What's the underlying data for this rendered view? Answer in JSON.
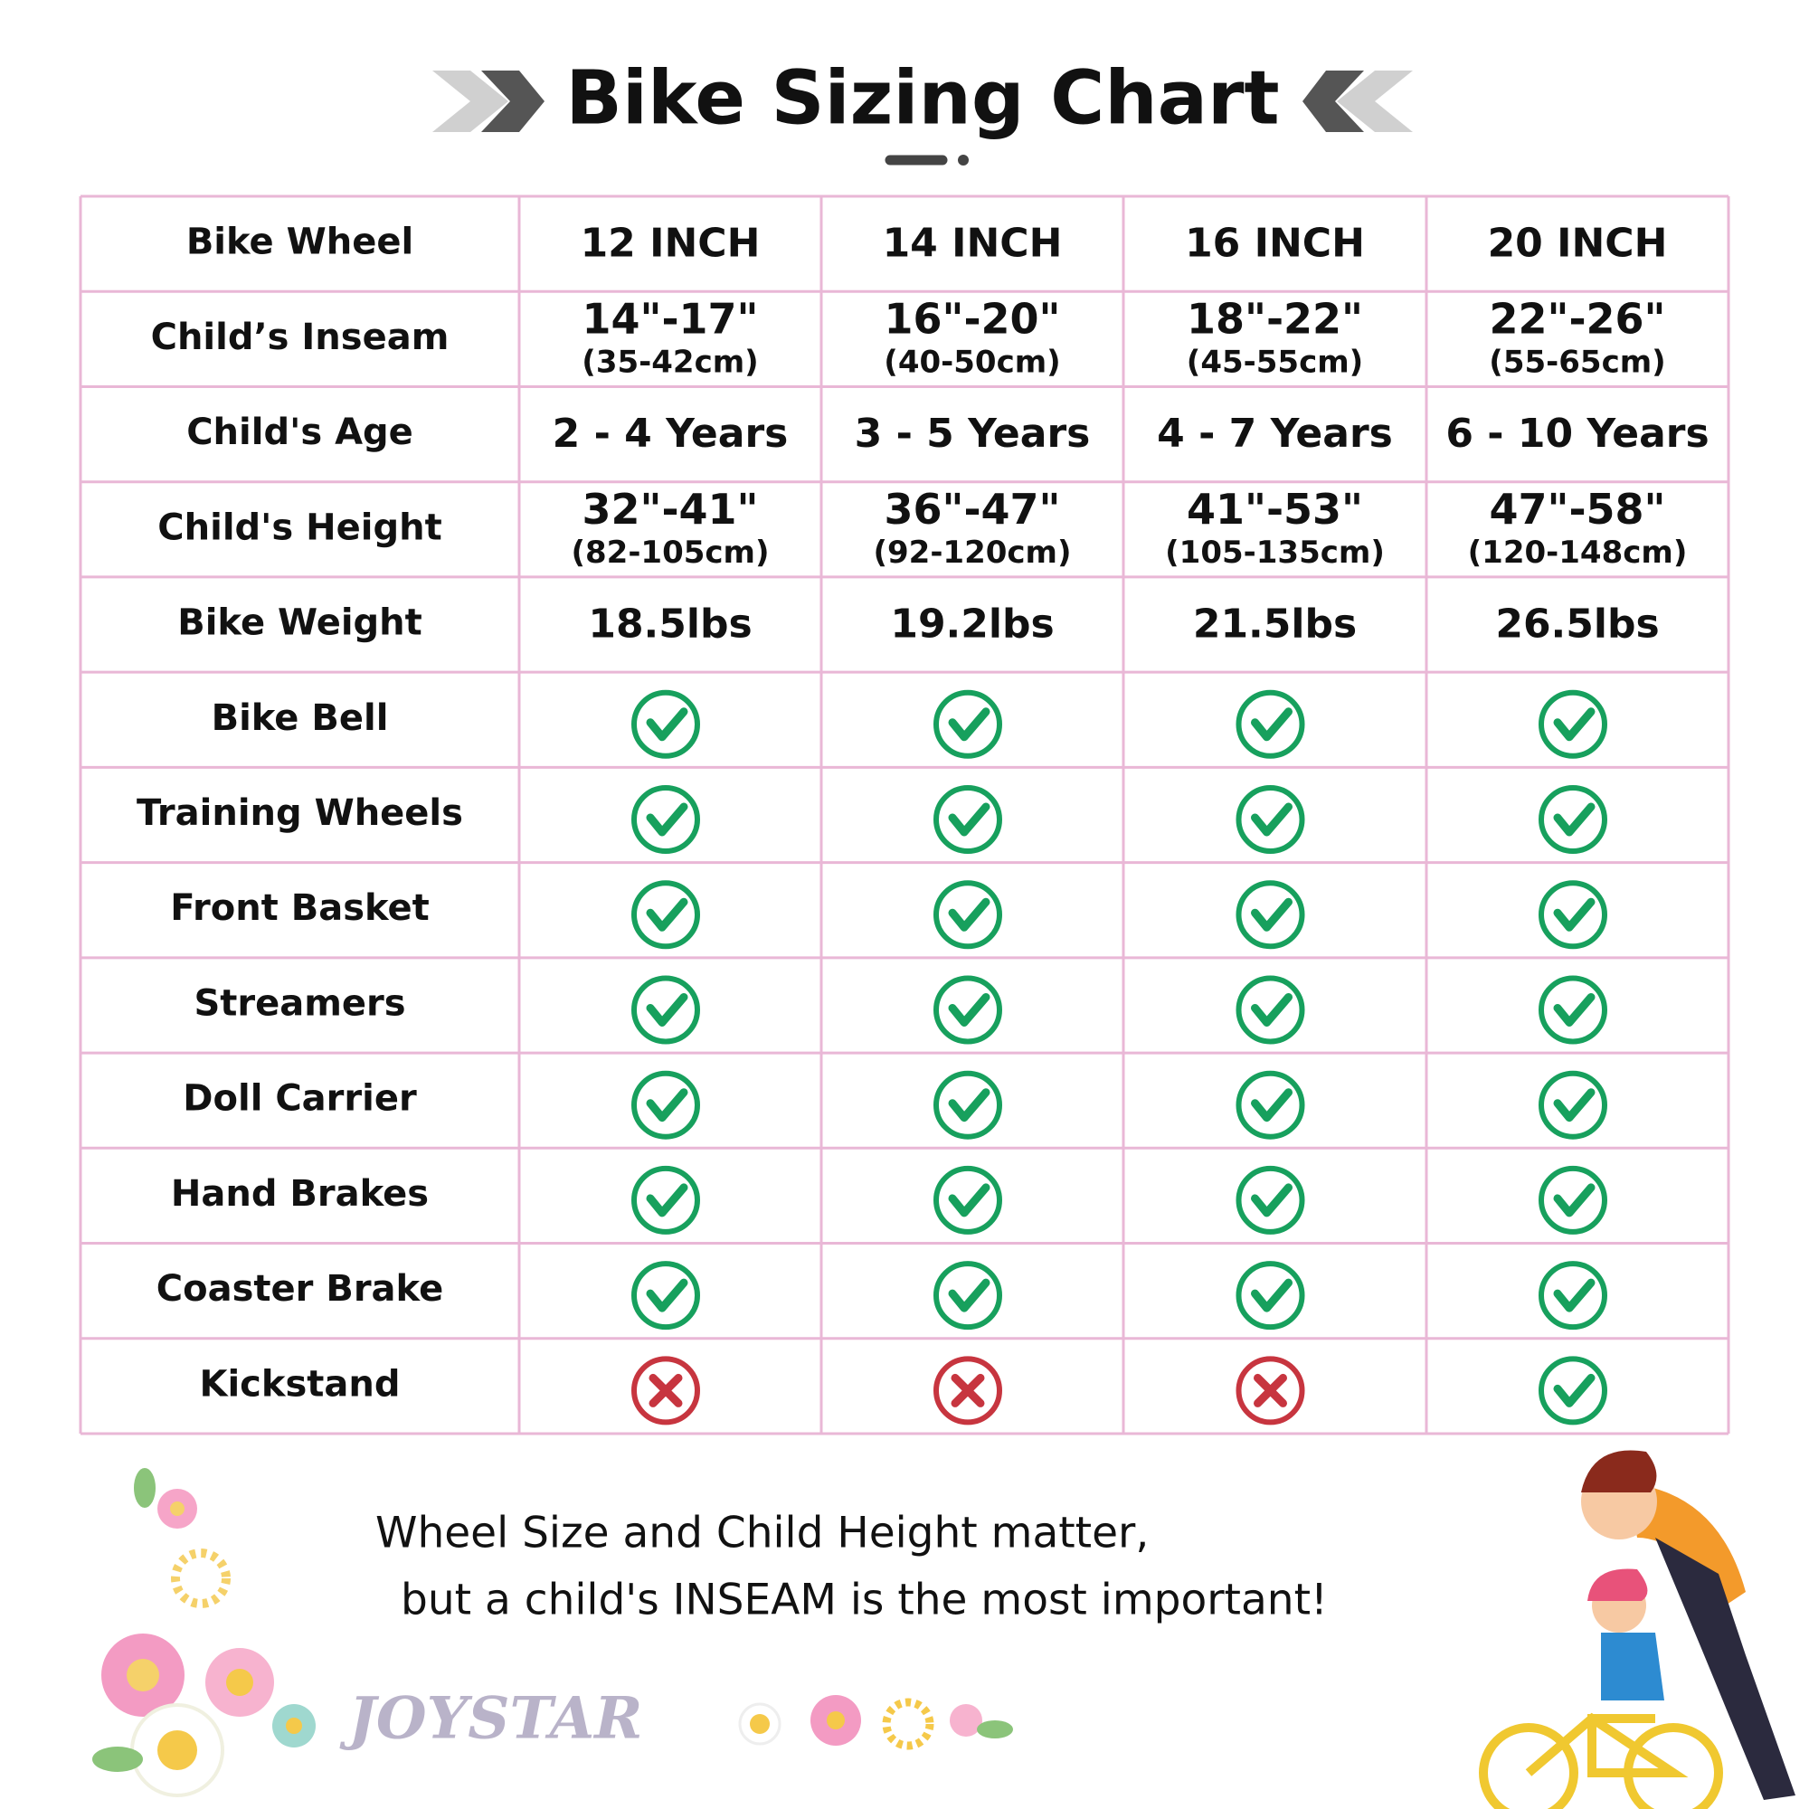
{
  "header": {
    "title": "Bike Sizing Chart"
  },
  "table": {
    "rows": [
      {
        "label": "Bike Wheel",
        "cells": [
          "12 INCH",
          "14 INCH",
          "16 INCH",
          "20 INCH"
        ]
      },
      {
        "label": "Child’s Inseam",
        "cells": [
          {
            "main": "14\"-17\"",
            "sub": "(35-42cm)"
          },
          {
            "main": "16\"-20\"",
            "sub": "(40-50cm)"
          },
          {
            "main": "18\"-22\"",
            "sub": "(45-55cm)"
          },
          {
            "main": "22\"-26\"",
            "sub": "(55-65cm)"
          }
        ]
      },
      {
        "label": "Child's Age",
        "cells": [
          "2 - 4 Years",
          "3 - 5 Years",
          "4 - 7 Years",
          "6 - 10 Years"
        ]
      },
      {
        "label": "Child's Height",
        "cells": [
          {
            "main": "32\"-41\"",
            "sub": "(82-105cm)"
          },
          {
            "main": "36\"-47\"",
            "sub": "(92-120cm)"
          },
          {
            "main": "41\"-53\"",
            "sub": "(105-135cm)"
          },
          {
            "main": "47\"-58\"",
            "sub": "(120-148cm)"
          }
        ]
      },
      {
        "label": "Bike Weight",
        "cells": [
          "18.5lbs",
          "19.2lbs",
          "21.5lbs",
          "26.5lbs"
        ]
      },
      {
        "label": "Bike Bell",
        "cells": [
          true,
          true,
          true,
          true
        ]
      },
      {
        "label": "Training Wheels",
        "cells": [
          true,
          true,
          true,
          true
        ]
      },
      {
        "label": "Front Basket",
        "cells": [
          true,
          true,
          true,
          true
        ]
      },
      {
        "label": "Streamers",
        "cells": [
          true,
          true,
          true,
          true
        ]
      },
      {
        "label": "Doll Carrier",
        "cells": [
          true,
          true,
          true,
          true
        ]
      },
      {
        "label": "Hand Brakes",
        "cells": [
          true,
          true,
          true,
          true
        ]
      },
      {
        "label": "Coaster Brake",
        "cells": [
          true,
          true,
          true,
          true
        ]
      },
      {
        "label": "Kickstand",
        "cells": [
          false,
          false,
          false,
          true
        ]
      }
    ]
  },
  "footer": {
    "line1": "Wheel Size and Child Height matter,",
    "line2": "but a child's INSEAM is the most important!",
    "logo": "JOYSTAR"
  }
}
